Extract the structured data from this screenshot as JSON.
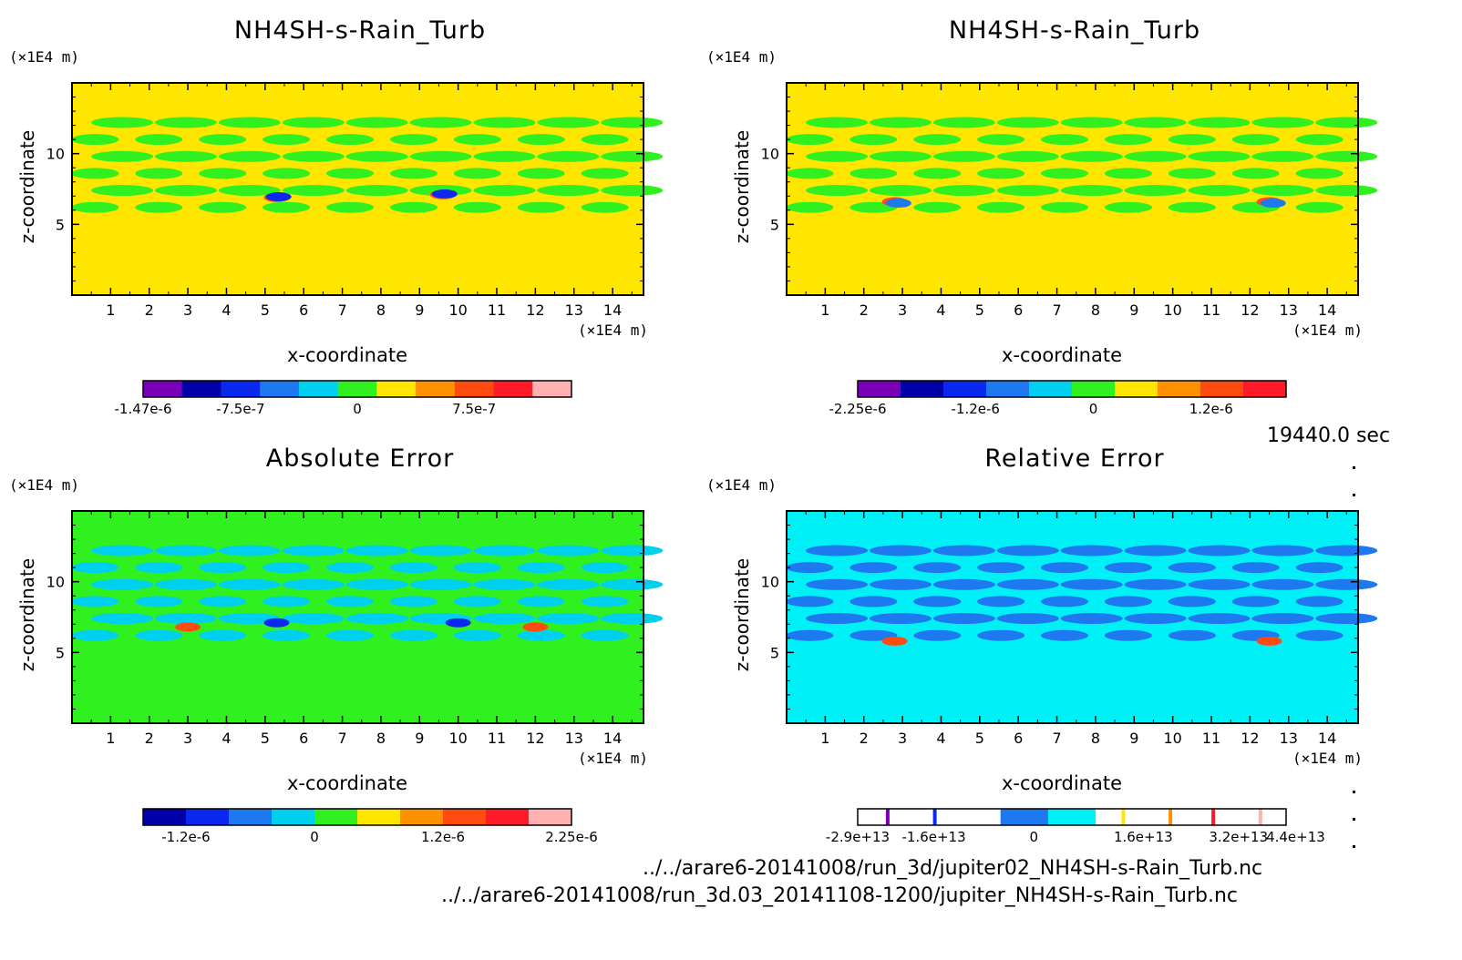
{
  "chart_data": [
    {
      "type": "heatmap",
      "title": "NH4SH-s-Rain_Turb",
      "xlabel": "x-coordinate",
      "ylabel": "z-coordinate",
      "x_unit": "(×1E4 m)",
      "y_unit": "(×1E4 m)",
      "x_ticks": [
        "1",
        "2",
        "3",
        "4",
        "5",
        "6",
        "7",
        "8",
        "9",
        "10",
        "11",
        "12",
        "13",
        "14"
      ],
      "y_ticks": [
        "5",
        "10"
      ],
      "xlim": [
        0,
        14.8
      ],
      "ylim": [
        0,
        15
      ],
      "background_color": "#ffe600",
      "colorbar": {
        "colors": [
          "#7a00b8",
          "#0000a8",
          "#0a28f0",
          "#1e78f0",
          "#00d0f0",
          "#30f020",
          "#ffe600",
          "#ff9000",
          "#ff4a10",
          "#ff1a28",
          "#ffb0b0"
        ],
        "labels": [
          "-1.47e-6",
          "-7.5e-7",
          "0",
          "7.5e-7"
        ],
        "label_positions": [
          0,
          2.5,
          5.5,
          8.5
        ]
      }
    },
    {
      "type": "heatmap",
      "title": "NH4SH-s-Rain_Turb",
      "xlabel": "x-coordinate",
      "ylabel": "z-coordinate",
      "x_unit": "(×1E4 m)",
      "y_unit": "(×1E4 m)",
      "x_ticks": [
        "1",
        "2",
        "3",
        "4",
        "5",
        "6",
        "7",
        "8",
        "9",
        "10",
        "11",
        "12",
        "13",
        "14"
      ],
      "y_ticks": [
        "5",
        "10"
      ],
      "xlim": [
        0,
        14.8
      ],
      "ylim": [
        0,
        15
      ],
      "background_color": "#ffe600",
      "colorbar": {
        "colors": [
          "#7a00b8",
          "#0000a8",
          "#0a28f0",
          "#1e78f0",
          "#00d0f0",
          "#30f020",
          "#ffe600",
          "#ff9000",
          "#ff4a10",
          "#ff1a28"
        ],
        "labels": [
          "-2.25e-6",
          "-1.2e-6",
          "0",
          "1.2e-6"
        ],
        "label_positions": [
          0,
          2.75,
          5.5,
          8.25
        ]
      }
    },
    {
      "type": "heatmap",
      "title": "Absolute Error",
      "xlabel": "x-coordinate",
      "ylabel": "z-coordinate",
      "x_unit": "(×1E4 m)",
      "y_unit": "(×1E4 m)",
      "x_ticks": [
        "1",
        "2",
        "3",
        "4",
        "5",
        "6",
        "7",
        "8",
        "9",
        "10",
        "11",
        "12",
        "13",
        "14"
      ],
      "y_ticks": [
        "5",
        "10"
      ],
      "xlim": [
        0,
        14.8
      ],
      "ylim": [
        0,
        15
      ],
      "background_color": "#30f020",
      "colorbar": {
        "colors": [
          "#0000a8",
          "#0a28f0",
          "#1e78f0",
          "#00d0f0",
          "#30f020",
          "#ffe600",
          "#ff9000",
          "#ff4a10",
          "#ff1a28",
          "#ffb0b0"
        ],
        "labels": [
          "-1.2e-6",
          "0",
          "1.2e-6",
          "2.25e-6"
        ],
        "label_positions": [
          1,
          4,
          7,
          10
        ]
      }
    },
    {
      "type": "heatmap",
      "title": "Relative Error",
      "xlabel": "x-coordinate",
      "ylabel": "z-coordinate",
      "x_unit": "(×1E4 m)",
      "y_unit": "(×1E4 m)",
      "x_ticks": [
        "1",
        "2",
        "3",
        "4",
        "5",
        "6",
        "7",
        "8",
        "9",
        "10",
        "11",
        "12",
        "13",
        "14"
      ],
      "y_ticks": [
        "5",
        "10"
      ],
      "xlim": [
        0,
        14.8
      ],
      "ylim": [
        0,
        15
      ],
      "background_color": "#00f0f8",
      "colorbar": {
        "colors": [
          "#ffffff",
          "#ffffff",
          "#ffffff",
          "#1e78f0",
          "#00f0f8",
          "#ffffff",
          "#ffffff",
          "#ffffff",
          "#ffffff"
        ],
        "labels": [
          "-2.9e+13",
          "-1.6e+13",
          "0",
          "1.6e+13",
          "3.2e+13",
          "4.4e+13"
        ],
        "label_positions": [
          0,
          1.6,
          3.7,
          6,
          8,
          9.2
        ]
      }
    }
  ],
  "time_label": "19440.0 sec",
  "files": [
    "../../arare6-20141008/run_3d/jupiter02_NH4SH-s-Rain_Turb.nc",
    "../../arare6-20141008/run_3d.03_20141108-1200/jupiter_NH4SH-s-Rain_Turb.nc"
  ]
}
